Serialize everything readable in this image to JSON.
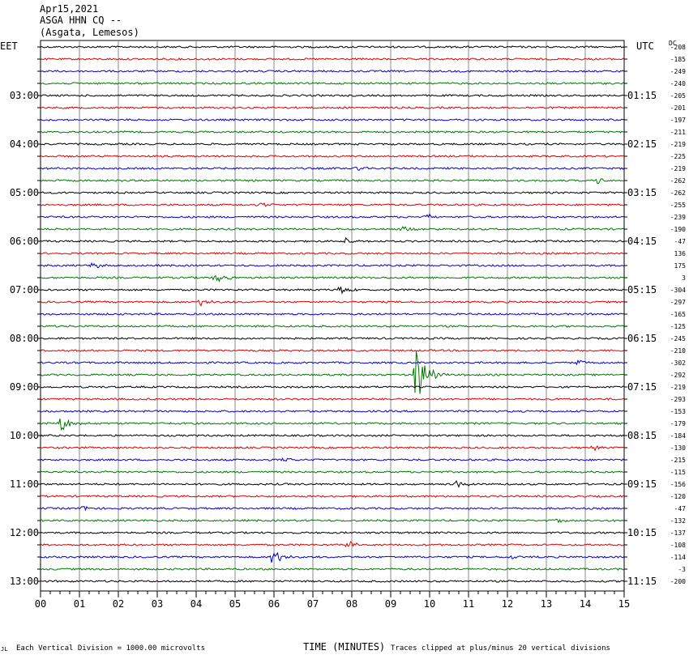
{
  "header": {
    "date": "Apr15,2021",
    "station": "ASGA HHN CQ --",
    "location": "(Asgata, Lemesos)"
  },
  "axes": {
    "left_label": "EET",
    "right_label": "UTC",
    "dc_label": "DC",
    "xlabel": "TIME (MINUTES)",
    "scale_note": "Each Vertical Division = 1000.00 microvolts",
    "clip_note": "Traces clipped at plus/minus 20 vertical divisions",
    "corner_mark": "JL"
  },
  "chart_data": {
    "type": "line",
    "x_ticks": [
      "00",
      "01",
      "02",
      "03",
      "04",
      "05",
      "06",
      "07",
      "08",
      "09",
      "10",
      "11",
      "12",
      "13",
      "14",
      "15"
    ],
    "xlim": [
      0,
      15
    ],
    "left_hour_labels": [
      "03:00",
      "04:00",
      "05:00",
      "06:00",
      "07:00",
      "08:00",
      "09:00",
      "10:00",
      "11:00",
      "12:00",
      "13:00"
    ],
    "right_hour_labels": [
      "01:15",
      "02:15",
      "03:15",
      "04:15",
      "05:15",
      "06:15",
      "07:15",
      "08:15",
      "09:15",
      "10:15",
      "11:15"
    ],
    "dc_offsets": [
      "-208",
      "-185",
      "-249",
      "-240",
      "-205",
      "-201",
      "-197",
      "-211",
      "-219",
      "-225",
      "-219",
      "-262",
      "-262",
      "-255",
      "-239",
      "-190",
      "-47",
      "136",
      "175",
      "3",
      "-304",
      "-297",
      "-165",
      "-125",
      "-245",
      "-210",
      "-302",
      "-292",
      "-219",
      "-293",
      "-153",
      "-179",
      "-184",
      "-130",
      "-215",
      "-115",
      "-156",
      "-120",
      "-47",
      "-132",
      "-137",
      "-108",
      "-114",
      "-3",
      "-200"
    ],
    "trace_colors": [
      "#000000",
      "#dd0000",
      "#0000cc",
      "#007700"
    ],
    "events": [
      {
        "trace": 10,
        "minute": 8.1,
        "amp": 4
      },
      {
        "trace": 11,
        "minute": 14.3,
        "amp": 4
      },
      {
        "trace": 13,
        "minute": 5.7,
        "amp": 3
      },
      {
        "trace": 14,
        "minute": 9.9,
        "amp": 4
      },
      {
        "trace": 15,
        "minute": 9.3,
        "amp": 3
      },
      {
        "trace": 16,
        "minute": 7.8,
        "amp": 5
      },
      {
        "trace": 18,
        "minute": 1.3,
        "amp": 4
      },
      {
        "trace": 19,
        "minute": 4.5,
        "amp": 7
      },
      {
        "trace": 20,
        "minute": 7.7,
        "amp": 6
      },
      {
        "trace": 21,
        "minute": 4.1,
        "amp": 5
      },
      {
        "trace": 26,
        "minute": 13.8,
        "amp": 3
      },
      {
        "trace": 27,
        "minute": 9.65,
        "amp": 45
      },
      {
        "trace": 31,
        "minute": 0.5,
        "amp": 12
      },
      {
        "trace": 33,
        "minute": 14.2,
        "amp": 3
      },
      {
        "trace": 34,
        "minute": 6.2,
        "amp": 3
      },
      {
        "trace": 36,
        "minute": 10.7,
        "amp": 5
      },
      {
        "trace": 38,
        "minute": 1.0,
        "amp": 4
      },
      {
        "trace": 39,
        "minute": 13.2,
        "amp": 3
      },
      {
        "trace": 41,
        "minute": 7.9,
        "amp": 6
      },
      {
        "trace": 42,
        "minute": 5.95,
        "amp": 12
      },
      {
        "trace": 42,
        "minute": 12.1,
        "amp": 3
      }
    ]
  }
}
